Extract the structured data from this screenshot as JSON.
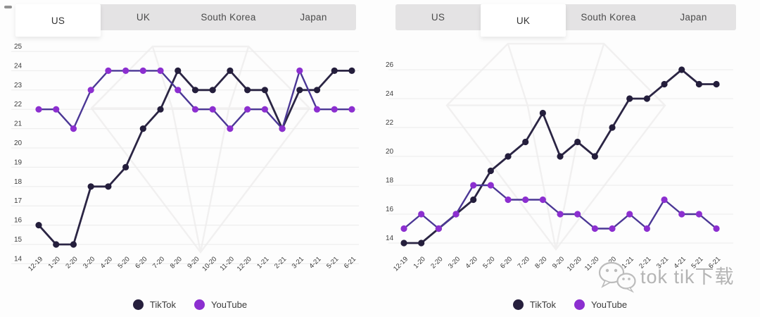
{
  "tabs_labels": [
    "US",
    "UK",
    "South Korea",
    "Japan"
  ],
  "panels": [
    {
      "region": "US",
      "tabs": [
        {
          "label": "US",
          "active": true
        },
        {
          "label": "UK",
          "active": false
        },
        {
          "label": "South Korea",
          "active": false
        },
        {
          "label": "Japan",
          "active": false
        }
      ]
    },
    {
      "region": "UK",
      "tabs": [
        {
          "label": "US",
          "active": false
        },
        {
          "label": "UK",
          "active": true
        },
        {
          "label": "South Korea",
          "active": false
        },
        {
          "label": "Japan",
          "active": false
        }
      ]
    }
  ],
  "legend": {
    "items": [
      {
        "label": "TikTok",
        "color": "#261f3d"
      },
      {
        "label": "YouTube",
        "color": "#8c2fd0"
      }
    ]
  },
  "watermark": {
    "icon": "wechat-icon",
    "text": "tok tik下载"
  },
  "colors": {
    "tiktok_line": "#2b2544",
    "tiktok_dot": "#241e3c",
    "youtube_line": "#4b3795",
    "youtube_dot": "#8c2fd0",
    "grid": "#ececec",
    "axis_text": "#3d3d3d",
    "gem_watermark": "#efeeee",
    "tab_bar_bg": "#e4e3e4",
    "tab_active_bg": "#ffffff"
  },
  "chart_data": [
    {
      "type": "line",
      "region": "US",
      "grid": true,
      "legend_position": "bottom",
      "x": [
        "12-19",
        "1-20",
        "2-20",
        "3-20",
        "4-20",
        "5-20",
        "6-20",
        "7-20",
        "8-20",
        "9-20",
        "10-20",
        "11-20",
        "12-20",
        "1-21",
        "2-21",
        "3-21",
        "4-21",
        "5-21",
        "6-21"
      ],
      "y_ticks": [
        25,
        24,
        23,
        22,
        21,
        20,
        19,
        18,
        17,
        16,
        15,
        14
      ],
      "ylim": [
        14,
        25
      ],
      "series": [
        {
          "name": "TikTok",
          "values": [
            16,
            15,
            15,
            18,
            18,
            19,
            21,
            22,
            24,
            23,
            23,
            24,
            23,
            23,
            21,
            23,
            23,
            24,
            24
          ]
        },
        {
          "name": "YouTube",
          "values": [
            22,
            22,
            21,
            23,
            24,
            24,
            24,
            24,
            23,
            22,
            22,
            21,
            22,
            22,
            21,
            24,
            22,
            22,
            22
          ]
        }
      ]
    },
    {
      "type": "line",
      "region": "UK",
      "grid": true,
      "legend_position": "bottom",
      "x": [
        "12-19",
        "1-20",
        "2-20",
        "3-20",
        "4-20",
        "5-20",
        "6-20",
        "7-20",
        "8-20",
        "9-20",
        "10-20",
        "11-20",
        "12-20",
        "1-21",
        "2-21",
        "3-21",
        "4-21",
        "5-21",
        "6-21"
      ],
      "y_ticks": [
        26,
        24,
        22,
        20,
        18,
        16,
        14
      ],
      "ylim": [
        14,
        26
      ],
      "series": [
        {
          "name": "TikTok",
          "values": [
            14,
            14,
            15,
            16,
            17,
            19,
            20,
            21,
            23,
            20,
            21,
            20,
            22,
            24,
            24,
            25,
            26,
            25,
            25
          ]
        },
        {
          "name": "YouTube",
          "values": [
            15,
            16,
            15,
            16,
            18,
            18,
            17,
            17,
            17,
            16,
            16,
            15,
            15,
            16,
            15,
            17,
            16,
            16,
            15
          ]
        }
      ]
    }
  ]
}
